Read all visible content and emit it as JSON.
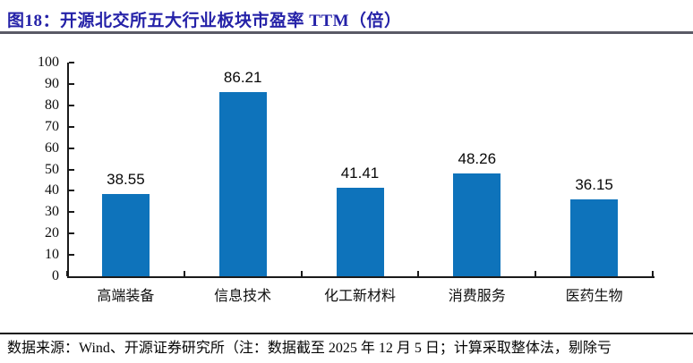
{
  "title": {
    "text": "图18：开源北交所五大行业板块市盈率 TTM（倍）"
  },
  "chart_data": {
    "type": "bar",
    "title": "开源北交所五大行业板块市盈率 TTM（倍）",
    "categories": [
      "高端装备",
      "信息技术",
      "化工新材料",
      "消费服务",
      "医药生物"
    ],
    "values": [
      38.55,
      86.21,
      41.41,
      48.26,
      36.15
    ],
    "value_labels": [
      "38.55",
      "86.21",
      "41.41",
      "48.26",
      "36.15"
    ],
    "xlabel": "",
    "ylabel": "",
    "ylim": [
      0,
      100
    ],
    "yticks": [
      0,
      10,
      20,
      30,
      40,
      50,
      60,
      70,
      80,
      90,
      100
    ],
    "grid": false,
    "legend": "none",
    "bar_color": "#0E73BB"
  },
  "footer": {
    "text": "数据来源：Wind、开源证券研究所（注：数据截至 2025 年 12 月 5 日；计算采取整体法，剔除亏"
  },
  "colors": {
    "bar": "#0E73BB",
    "title": "#2522A8",
    "title_rule": "#5A5A66",
    "axis": "#1A1A1A",
    "footer_rule": "#111111",
    "text": "#000000"
  }
}
